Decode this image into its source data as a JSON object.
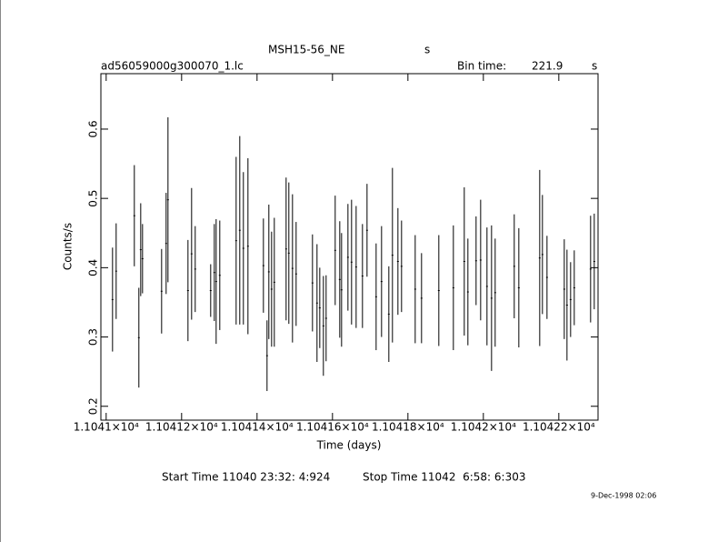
{
  "chart_data": {
    "type": "errorbar",
    "title": "MSH15-56_NE",
    "title_suffix": "s",
    "subtitle": "ad56059000g300070_1.lc",
    "bin_time_label": "Bin time:",
    "bin_time": 221.9,
    "bin_time_unit": "s",
    "x_label": "Time (days)",
    "y_label": "Counts/s",
    "start_time": "Start Time 11040 23:32: 4:924",
    "stop_time": "Stop Time 11042  6:58: 6:303",
    "date": "9-Dec-1998 02:06",
    "color": "#000000",
    "xlim": [
      11040.986,
      11042.304
    ],
    "ylim": [
      0.18,
      0.68
    ],
    "xticks": [
      {
        "value": 11041,
        "label": "1.1041×10⁴"
      },
      {
        "value": 11041.2,
        "label": "1.10412×10⁴"
      },
      {
        "value": 11041.4,
        "label": "1.10414×10⁴"
      },
      {
        "value": 11041.6,
        "label": "1.10416×10⁴"
      },
      {
        "value": 11041.8,
        "label": "1.10418×10⁴"
      },
      {
        "value": 11042,
        "label": "1.1042×10⁴"
      },
      {
        "value": 11042.2,
        "label": "1.10422×10⁴"
      }
    ],
    "yticks": [
      0.2,
      0.3,
      0.4,
      0.5,
      0.6
    ],
    "x": [
      11041.0169,
      11041.0265,
      11041.0747,
      11041.0867,
      11041.0916,
      11041.0964,
      11041.147,
      11041.159,
      11041.1639,
      11041.2169,
      11041.2265,
      11041.2361,
      11041.2771,
      11041.2867,
      11041.2916,
      11041.3012,
      11041.3446,
      11041.3542,
      11041.3638,
      11041.3759,
      11041.4169,
      11041.4265,
      11041.4313,
      11041.4386,
      11041.4458,
      11041.4771,
      11041.4843,
      11041.494,
      11041.5036,
      11041.547,
      11041.559,
      11041.5663,
      11041.5759,
      11041.5831,
      11041.6072,
      11041.6193,
      11041.6241,
      11041.641,
      11041.6506,
      11041.6627,
      11041.6795,
      11041.6916,
      11041.7157,
      11041.7301,
      11041.7494,
      11041.759,
      11041.7735,
      11041.7831,
      11041.8193,
      11041.8361,
      11041.8819,
      11041.9205,
      11041.9494,
      11041.959,
      11041.9807,
      11041.9928,
      11042.0096,
      11042.0217,
      11042.0313,
      11042.0819,
      11042.094,
      11042.1494,
      11042.1566,
      11042.1687,
      11042.2145,
      11042.2217,
      11042.2313,
      11042.241,
      11042.2843,
      11042.294
    ],
    "values": [
      0.354,
      0.395,
      0.475,
      0.299,
      0.426,
      0.413,
      0.366,
      0.435,
      0.498,
      0.367,
      0.42,
      0.398,
      0.367,
      0.393,
      0.38,
      0.389,
      0.439,
      0.454,
      0.428,
      0.431,
      0.403,
      0.273,
      0.394,
      0.369,
      0.379,
      0.427,
      0.421,
      0.399,
      0.391,
      0.378,
      0.349,
      0.342,
      0.316,
      0.327,
      0.425,
      0.383,
      0.368,
      0.415,
      0.408,
      0.401,
      0.388,
      0.454,
      0.358,
      0.38,
      0.333,
      0.418,
      0.409,
      0.402,
      0.369,
      0.356,
      0.367,
      0.371,
      0.409,
      0.365,
      0.41,
      0.411,
      0.373,
      0.356,
      0.364,
      0.402,
      0.371,
      0.414,
      0.419,
      0.386,
      0.369,
      0.346,
      0.354,
      0.371,
      0.398,
      0.409
    ],
    "errors": [
      0.075,
      0.069,
      0.073,
      0.072,
      0.067,
      0.05,
      0.061,
      0.073,
      0.119,
      0.073,
      0.095,
      0.062,
      0.038,
      0.07,
      0.09,
      0.079,
      0.121,
      0.136,
      0.11,
      0.127,
      0.068,
      0.051,
      0.097,
      0.083,
      0.093,
      0.103,
      0.102,
      0.107,
      0.075,
      0.07,
      0.085,
      0.058,
      0.072,
      0.062,
      0.079,
      0.084,
      0.082,
      0.077,
      0.09,
      0.088,
      0.075,
      0.067,
      0.077,
      0.08,
      0.069,
      0.126,
      0.077,
      0.066,
      0.078,
      0.065,
      0.08,
      0.09,
      0.107,
      0.077,
      0.064,
      0.087,
      0.085,
      0.105,
      0.078,
      0.075,
      0.086,
      0.127,
      0.086,
      0.06,
      0.072,
      0.08,
      0.054,
      0.054,
      0.077,
      0.069
    ]
  }
}
